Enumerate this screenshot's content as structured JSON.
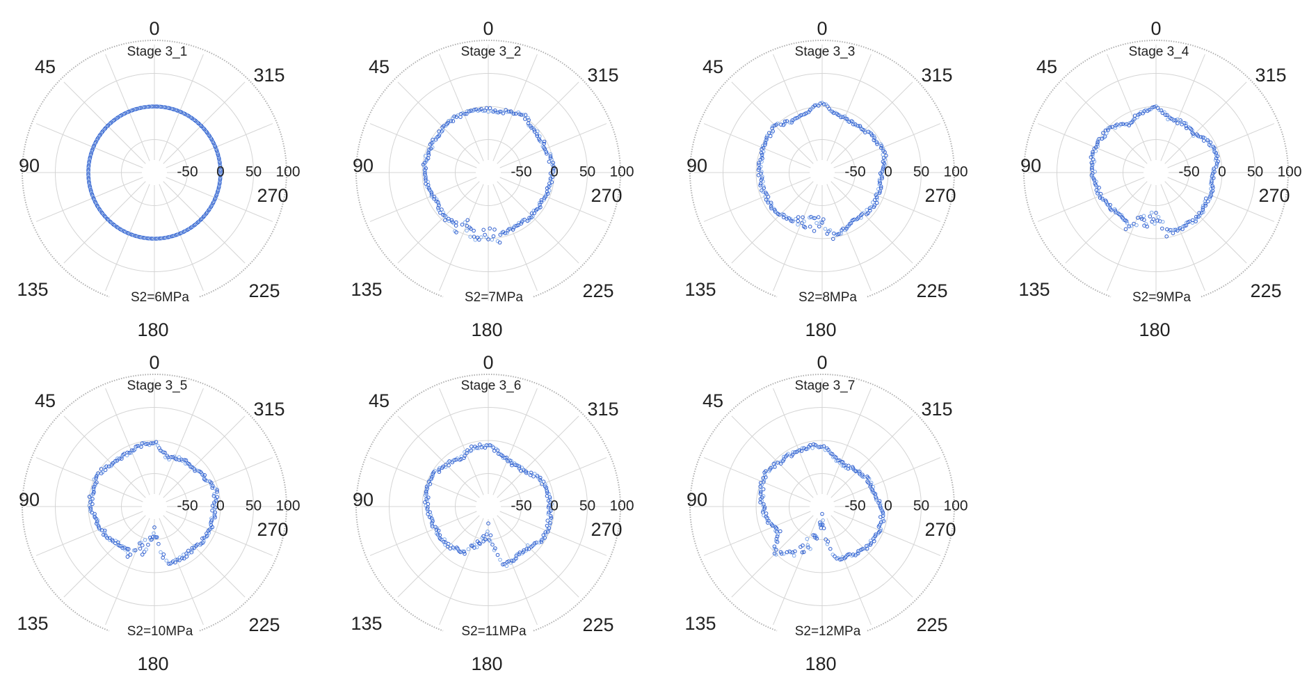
{
  "chart_data": {
    "type": "scatter",
    "subtype": "polar",
    "theta_direction": "counterclockwise",
    "theta_zero": "top",
    "angle_ticks": [
      "0",
      "45",
      "90",
      "135",
      "180",
      "225",
      "270",
      "315"
    ],
    "angle_tick_values": [
      0,
      45,
      90,
      135,
      180,
      225,
      270,
      315
    ],
    "radial_ticks": [
      "-50",
      "0",
      "50",
      "100"
    ],
    "radial_tick_values": [
      -50,
      0,
      50,
      100
    ],
    "rlim": [
      -100,
      100
    ],
    "grid": true,
    "marker": "open-circle",
    "color": "#2f5fcf",
    "profile_theta_deg": [
      0,
      15,
      30,
      45,
      60,
      75,
      90,
      105,
      120,
      135,
      150,
      165,
      180,
      195,
      210,
      225,
      240,
      255,
      270,
      285,
      300,
      315,
      330,
      345
    ],
    "panels": [
      {
        "title": "Stage 3_1",
        "subtitle": "S2=6MPa",
        "r": [
          0,
          0,
          0,
          0,
          0,
          0,
          0,
          0,
          0,
          0,
          0,
          0,
          0,
          0,
          0,
          0,
          0,
          0,
          0,
          0,
          0,
          0,
          0,
          0
        ]
      },
      {
        "title": "Stage 3_2",
        "subtitle": "S2=7MPa",
        "r": [
          -5,
          -4,
          -3,
          -5,
          -5,
          -4,
          -3,
          -8,
          -11,
          -5,
          -9,
          -7,
          -5,
          -6,
          -10,
          -8,
          -8,
          -5,
          -3,
          -4,
          -6,
          -6,
          3,
          -5
        ]
      },
      {
        "title": "Stage 3_3",
        "subtitle": "S2=8MPa",
        "r": [
          4,
          -7,
          -12,
          0,
          -3,
          -5,
          -6,
          -7,
          -8,
          -10,
          -15,
          -25,
          -18,
          -4,
          -12,
          -10,
          -8,
          -10,
          -12,
          -2,
          -4,
          -10,
          -12,
          -10
        ]
      },
      {
        "title": "Stage 3_4",
        "subtitle": "S2=9MPa",
        "r": [
          1,
          -7,
          -16,
          -4,
          -2,
          -1,
          -5,
          -8,
          -11,
          -15,
          -14,
          -23,
          -30,
          -7,
          -9,
          -7,
          -12,
          -12,
          -13,
          -4,
          -9,
          -19,
          -14,
          -18
        ]
      },
      {
        "title": "Stage 3_5",
        "subtitle": "S2=10MPa",
        "r": [
          -3,
          -5,
          -11,
          -8,
          -2,
          -3,
          -4,
          -10,
          -15,
          -20,
          -22,
          -35,
          -60,
          -10,
          -12,
          -14,
          -9,
          -9,
          -10,
          -4,
          -12,
          -19,
          -17,
          -24
        ]
      },
      {
        "title": "Stage 3_6",
        "subtitle": "S2=11MPa",
        "r": [
          -8,
          -8,
          -17,
          -10,
          -4,
          -5,
          -7,
          -11,
          -15,
          -16,
          -22,
          -42,
          -64,
          -8,
          -14,
          -14,
          -4,
          -5,
          -6,
          -7,
          -13,
          -24,
          -26,
          -21
        ]
      },
      {
        "title": "Stage 3_7",
        "subtitle": "S2=12MPa",
        "r": [
          -8,
          -7,
          -8,
          -7,
          0,
          -5,
          -10,
          -15,
          -25,
          0,
          -25,
          -48,
          -80,
          -16,
          -15,
          -9,
          -7,
          -6,
          -13,
          -18,
          -20,
          -24,
          -29,
          -25
        ]
      }
    ]
  }
}
